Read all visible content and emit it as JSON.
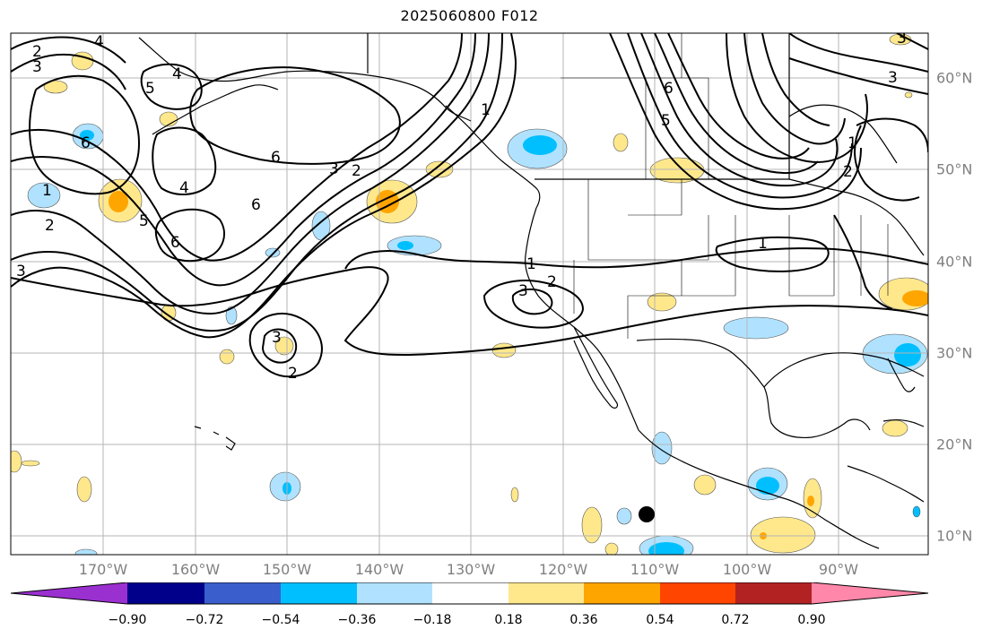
{
  "title": "2025060800 F012",
  "map": {
    "lon_ticks": [
      "170°W",
      "160°W",
      "150°W",
      "140°W",
      "130°W",
      "120°W",
      "110°W",
      "100°W",
      "90°W"
    ],
    "lat_ticks": [
      "60°N",
      "50°N",
      "40°N",
      "30°N",
      "20°N",
      "10°N"
    ],
    "grid": true,
    "contour_labels": [
      "2",
      "3",
      "4",
      "5",
      "4",
      "6",
      "3",
      "1",
      "2",
      "6",
      "5",
      "6",
      "4",
      "3",
      "2",
      "6",
      "1",
      "5",
      "6",
      "1",
      "3",
      "2",
      "3",
      "2",
      "1",
      "2",
      "3",
      "1",
      "3"
    ],
    "marker": "filled-circle"
  },
  "colorbar": {
    "colors": [
      "#9b30d0",
      "#00008b",
      "#3a5fcd",
      "#00bfff",
      "#b0e2ff",
      "#ffffff",
      "#ffe88c",
      "#ffa500",
      "#ff4500",
      "#b22222",
      "#ff88aa"
    ],
    "tick_labels": [
      "−0.90",
      "−0.72",
      "−0.54",
      "−0.36",
      "−0.18",
      "0.18",
      "0.36",
      "0.54",
      "0.72",
      "0.90"
    ]
  }
}
